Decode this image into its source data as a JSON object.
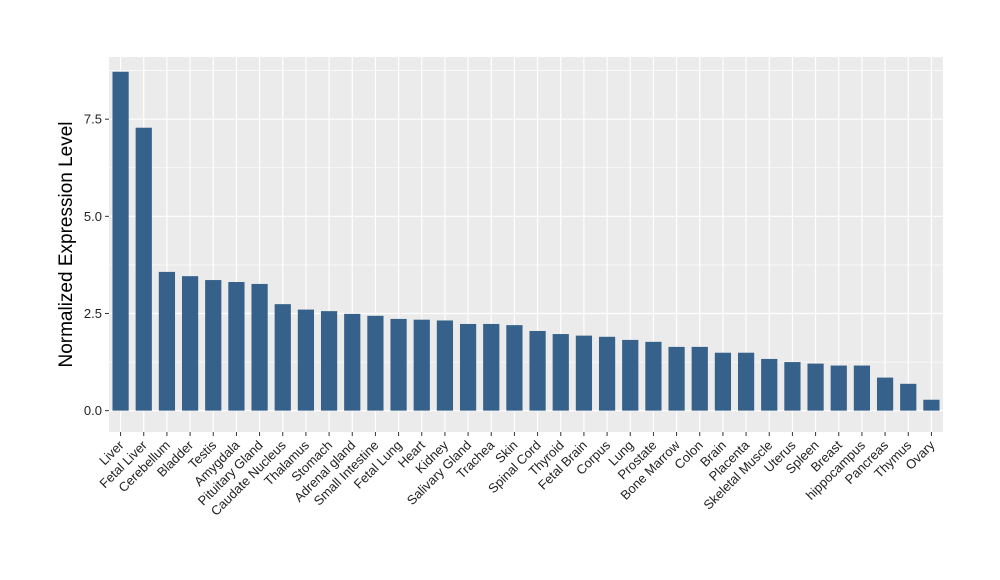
{
  "chart_data": {
    "type": "bar",
    "title": "",
    "xlabel": "",
    "ylabel": "Normalized Expression Level",
    "ylim": [
      -0.55,
      9.1
    ],
    "yticks": [
      0.0,
      2.5,
      5.0,
      7.5
    ],
    "ytick_labels": [
      "0.0",
      "2.5",
      "5.0",
      "7.5"
    ],
    "grid": true,
    "legend": "none",
    "bar_color": "#35618A",
    "panel_color": "#EBEBEB",
    "grid_color": "#FFFFFF",
    "categories": [
      "Liver",
      "Fetal Liver",
      "Cerebellum",
      "Bladder",
      "Testis",
      "Amygdala",
      "Pituitary Gland",
      "Caudate Nucleus",
      "Thalamus",
      "Stomach",
      "Adrenal gland",
      "Small Intestine",
      "Fetal Lung",
      "Heart",
      "Kidney",
      "Salivary Gland",
      "Trachea",
      "Skin",
      "Spinal Cord",
      "Thyroid",
      "Fetal Brain",
      "Corpus",
      "Lung",
      "Prostate",
      "Bone Marrow",
      "Colon",
      "Brain",
      "Placenta",
      "Skeletal Muscle",
      "Uterus",
      "Spleen",
      "Breast",
      "hippocampus",
      "Pancreas",
      "Thymus",
      "Ovary"
    ],
    "values": [
      8.72,
      7.28,
      3.57,
      3.46,
      3.36,
      3.31,
      3.26,
      2.74,
      2.6,
      2.56,
      2.49,
      2.44,
      2.36,
      2.34,
      2.32,
      2.23,
      2.23,
      2.2,
      2.05,
      1.97,
      1.93,
      1.9,
      1.82,
      1.77,
      1.64,
      1.64,
      1.49,
      1.49,
      1.33,
      1.25,
      1.21,
      1.16,
      1.16,
      0.85,
      0.69,
      0.28
    ]
  }
}
